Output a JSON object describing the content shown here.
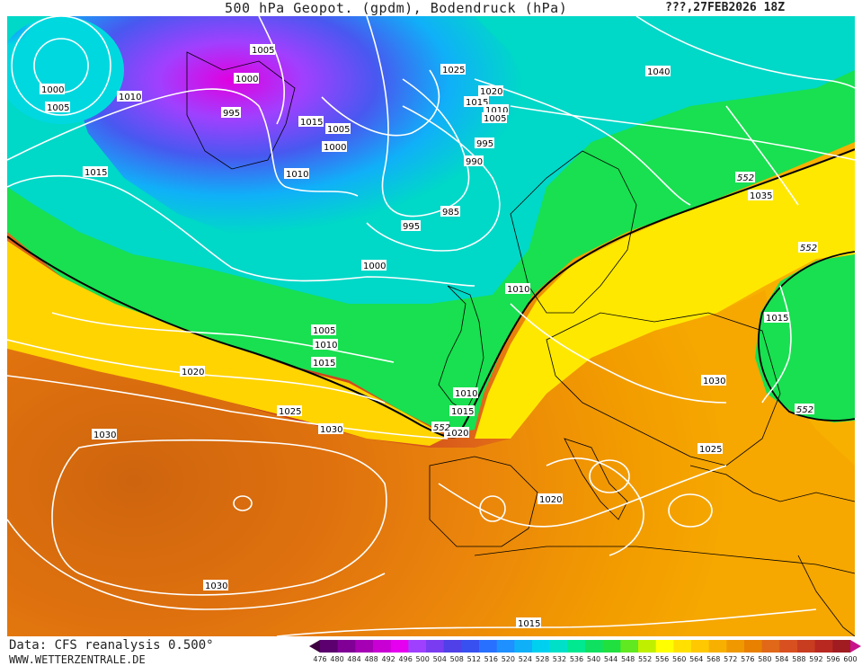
{
  "header": {
    "title": "500 hPa Geopot. (gpdm), Bodendruck (hPa)",
    "run": "???,27FEB2026 18Z"
  },
  "footer": {
    "data_credit": "Data: CFS reanalysis 0.500°",
    "site": "WWW.WETTERZENTRALE.DE"
  },
  "scale": {
    "labels": [
      "476",
      "480",
      "484",
      "488",
      "492",
      "496",
      "500",
      "504",
      "508",
      "512",
      "516",
      "520",
      "524",
      "528",
      "532",
      "536",
      "540",
      "544",
      "548",
      "552",
      "556",
      "560",
      "564",
      "568",
      "572",
      "576",
      "580",
      "584",
      "588",
      "592",
      "596",
      "600"
    ],
    "colors": [
      "#3d0040",
      "#5c0070",
      "#800096",
      "#a600b4",
      "#c800d4",
      "#e600f0",
      "#a040ff",
      "#7a3cf0",
      "#5040e8",
      "#3850f0",
      "#2870ff",
      "#1e90ff",
      "#10b0f8",
      "#00d0f0",
      "#00e0c8",
      "#00e890",
      "#10e060",
      "#20e040",
      "#60e820",
      "#c0f000",
      "#ffff00",
      "#ffe000",
      "#ffc800",
      "#f8b000",
      "#f09800",
      "#e88000",
      "#e06818",
      "#d85020",
      "#c83c20",
      "#b82820",
      "#a01c20",
      "#c8148c"
    ]
  },
  "isobar_labels": [
    {
      "text": "1000"
    },
    {
      "text": "1005"
    },
    {
      "text": "1010"
    },
    {
      "text": "1015"
    },
    {
      "text": "1005"
    },
    {
      "text": "1000"
    },
    {
      "text": "995"
    },
    {
      "text": "1015"
    },
    {
      "text": "1005"
    },
    {
      "text": "1000"
    },
    {
      "text": "1010"
    },
    {
      "text": "1025"
    },
    {
      "text": "1020"
    },
    {
      "text": "1015"
    },
    {
      "text": "1010"
    },
    {
      "text": "1005"
    },
    {
      "text": "995"
    },
    {
      "text": "990"
    },
    {
      "text": "985"
    },
    {
      "text": "995"
    },
    {
      "text": "1040"
    },
    {
      "text": "1035"
    },
    {
      "text": "1000"
    },
    {
      "text": "1010"
    },
    {
      "text": "1005"
    },
    {
      "text": "1010"
    },
    {
      "text": "1015"
    },
    {
      "text": "1020"
    },
    {
      "text": "1025"
    },
    {
      "text": "1030"
    },
    {
      "text": "1030"
    },
    {
      "text": "1010"
    },
    {
      "text": "1015"
    },
    {
      "text": "1020"
    },
    {
      "text": "1015"
    },
    {
      "text": "1030"
    },
    {
      "text": "1025"
    },
    {
      "text": "1020"
    },
    {
      "text": "1030"
    },
    {
      "text": "1015"
    }
  ],
  "contour_labels": [
    {
      "text": "552"
    },
    {
      "text": "552"
    },
    {
      "text": "552"
    },
    {
      "text": "552"
    }
  ]
}
